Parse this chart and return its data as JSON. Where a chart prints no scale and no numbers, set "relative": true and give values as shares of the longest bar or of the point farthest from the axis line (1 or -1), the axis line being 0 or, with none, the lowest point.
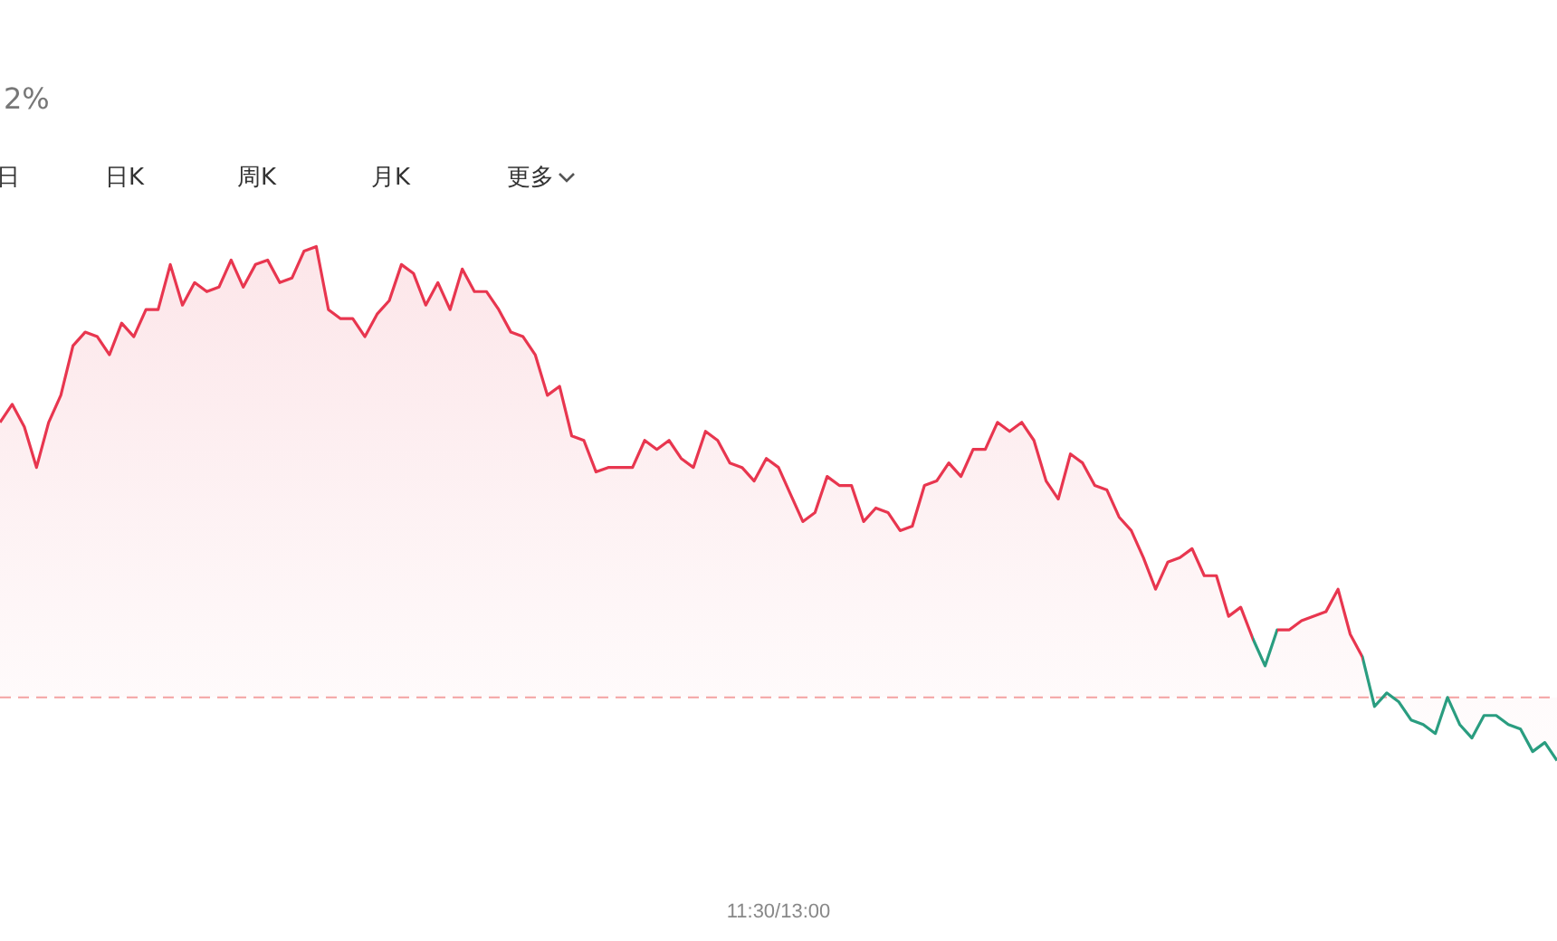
{
  "chart_data": {
    "type": "area",
    "relative": true,
    "annotations": [
      "2%",
      "日",
      "日K",
      "周K",
      "月K",
      "更多",
      "11:30/13:00"
    ],
    "categories": [
      null,
      null,
      null,
      null,
      null,
      null,
      null,
      null,
      null,
      null,
      null,
      null,
      null,
      null,
      null,
      null,
      null,
      null,
      null,
      null,
      null,
      null,
      null,
      null,
      null,
      null,
      null,
      null,
      null,
      null,
      null,
      null,
      null,
      null,
      null,
      null,
      null,
      null,
      null,
      null,
      null,
      null,
      null,
      null,
      null,
      null,
      null,
      null,
      null,
      null,
      null,
      null,
      null,
      null,
      null,
      null,
      null,
      null,
      null,
      null,
      null,
      null,
      null,
      null,
      null,
      null,
      null,
      null,
      null,
      null,
      null,
      null,
      null,
      null,
      null,
      null,
      null,
      null,
      null,
      null,
      null,
      null,
      null,
      null,
      null,
      null,
      null,
      null,
      null,
      null,
      null,
      null,
      null,
      null,
      null,
      null,
      null,
      null,
      null,
      null,
      null,
      null,
      null,
      null,
      null,
      null,
      null,
      null,
      null,
      null,
      null,
      null,
      null,
      null,
      null,
      null,
      null,
      null,
      null,
      null,
      null,
      null,
      null,
      null,
      null,
      null,
      null,
      null,
      null
    ],
    "grid": false,
    "legend": false,
    "marker": "none",
    "line_style": "solid",
    "ref_lines": [
      {
        "axis": "y",
        "value": 0,
        "color": "#f4a3a3",
        "line_style": "dashed"
      }
    ],
    "series": [
      {
        "color": "#e8364f",
        "values": [
          0.61,
          0.65,
          0.6,
          0.51,
          0.61,
          0.67,
          0.78,
          0.81,
          0.8,
          0.76,
          0.83,
          0.8,
          0.86,
          0.86,
          0.96,
          0.87,
          0.92,
          0.9,
          0.91,
          0.97,
          0.91,
          0.96,
          0.97,
          0.92,
          0.93,
          0.99,
          1,
          0.86,
          0.84,
          0.84,
          0.8,
          0.85,
          0.88,
          0.96,
          0.94,
          0.87,
          0.92,
          0.86,
          0.95,
          0.9,
          0.9,
          0.86,
          0.81,
          0.8,
          0.76,
          0.67,
          0.69,
          0.58,
          0.57,
          0.5,
          0.51,
          0.51,
          0.51,
          0.57,
          0.55,
          0.57,
          0.53,
          0.51,
          0.59,
          0.57,
          0.52,
          0.51,
          0.48,
          0.53,
          0.51,
          0.45,
          0.39,
          0.41,
          0.49,
          0.47,
          0.47,
          0.39,
          0.42,
          0.41,
          0.37,
          0.38,
          0.47,
          0.48,
          0.52,
          0.49,
          0.55,
          0.55,
          0.61,
          0.59,
          0.61,
          0.57,
          0.48,
          0.44,
          0.54,
          0.52,
          0.47,
          0.46,
          0.4,
          0.37,
          0.31,
          0.24,
          0.3,
          0.31,
          0.33,
          0.27,
          0.27,
          0.18,
          0.2,
          0.13,
          0.07,
          0.15,
          0.15,
          0.17,
          0.18,
          0.19,
          0.24,
          0.14,
          0.09,
          -0.02,
          0.01,
          -0.01,
          -0.05,
          -0.06,
          -0.08,
          0,
          -0.06,
          -0.09,
          -0.04,
          -0.04,
          -0.06,
          -0.07,
          -0.12,
          -0.1,
          -0.14
        ],
        "colors": [
          "#e8364f",
          "#e8364f",
          "#e8364f",
          "#e8364f",
          "#e8364f",
          "#e8364f",
          "#e8364f",
          "#e8364f",
          "#e8364f",
          "#e8364f",
          "#e8364f",
          "#e8364f",
          "#e8364f",
          "#e8364f",
          "#e8364f",
          "#e8364f",
          "#e8364f",
          "#e8364f",
          "#e8364f",
          "#e8364f",
          "#e8364f",
          "#e8364f",
          "#e8364f",
          "#e8364f",
          "#e8364f",
          "#e8364f",
          "#e8364f",
          "#e8364f",
          "#e8364f",
          "#e8364f",
          "#e8364f",
          "#e8364f",
          "#e8364f",
          "#e8364f",
          "#e8364f",
          "#e8364f",
          "#e8364f",
          "#e8364f",
          "#e8364f",
          "#e8364f",
          "#e8364f",
          "#e8364f",
          "#e8364f",
          "#e8364f",
          "#e8364f",
          "#e8364f",
          "#e8364f",
          "#e8364f",
          "#e8364f",
          "#e8364f",
          "#e8364f",
          "#e8364f",
          "#e8364f",
          "#e8364f",
          "#e8364f",
          "#e8364f",
          "#e8364f",
          "#e8364f",
          "#e8364f",
          "#e8364f",
          "#e8364f",
          "#e8364f",
          "#e8364f",
          "#e8364f",
          "#e8364f",
          "#e8364f",
          "#e8364f",
          "#e8364f",
          "#e8364f",
          "#e8364f",
          "#e8364f",
          "#e8364f",
          "#e8364f",
          "#e8364f",
          "#e8364f",
          "#e8364f",
          "#e8364f",
          "#e8364f",
          "#e8364f",
          "#e8364f",
          "#e8364f",
          "#e8364f",
          "#e8364f",
          "#e8364f",
          "#e8364f",
          "#e8364f",
          "#e8364f",
          "#e8364f",
          "#e8364f",
          "#e8364f",
          "#e8364f",
          "#e8364f",
          "#e8364f",
          "#e8364f",
          "#e8364f",
          "#e8364f",
          "#e8364f",
          "#e8364f",
          "#e8364f",
          "#e8364f",
          "#e8364f",
          "#e8364f",
          "#e8364f",
          "#2a9d80",
          "#2a9d80",
          "#e8364f",
          "#e8364f",
          "#e8364f",
          "#e8364f",
          "#e8364f",
          "#e8364f",
          "#e8364f",
          "#2a9d80",
          "#2a9d80",
          "#2a9d80",
          "#2a9d80",
          "#2a9d80",
          "#2a9d80",
          "#2a9d80",
          "#2a9d80",
          "#2a9d80",
          "#2a9d80",
          "#2a9d80",
          "#2a9d80",
          "#2a9d80",
          "#2a9d80",
          "#2a9d80",
          "#2a9d80",
          "#2a9d80"
        ]
      }
    ]
  }
}
